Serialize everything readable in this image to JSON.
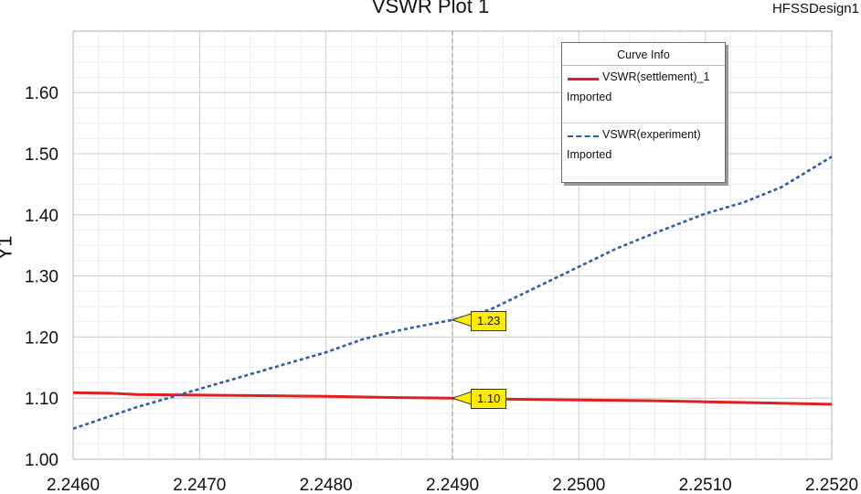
{
  "header": {
    "title": "VSWR Plot 1",
    "design_name": "HFSSDesign1"
  },
  "chart_data": {
    "type": "line",
    "title": "VSWR Plot 1",
    "xlabel": "",
    "ylabel": "Y1",
    "xlim": [
      2.246,
      2.252
    ],
    "ylim": [
      1.0,
      1.7
    ],
    "x_ticks": [
      "2.2460",
      "2.2470",
      "2.2480",
      "2.2490",
      "2.2500",
      "2.2510",
      "2.2520"
    ],
    "y_ticks": [
      "1.00",
      "1.10",
      "1.20",
      "1.30",
      "1.40",
      "1.50",
      "1.60"
    ],
    "grid": true,
    "cursor_x": 2.249,
    "series": [
      {
        "name": "VSWR(settlement)_1",
        "subtitle": "Imported",
        "color": "#e02020",
        "style": "solid",
        "x": [
          2.246,
          2.2463,
          2.2465,
          2.247,
          2.2475,
          2.248,
          2.2485,
          2.249,
          2.2495,
          2.25,
          2.2505,
          2.251,
          2.2515,
          2.252
        ],
        "y": [
          1.109,
          1.108,
          1.106,
          1.105,
          1.104,
          1.103,
          1.101,
          1.1,
          1.098,
          1.097,
          1.096,
          1.094,
          1.092,
          1.09
        ]
      },
      {
        "name": "VSWR(experiment)",
        "subtitle": "Imported",
        "color": "#2e5ea8",
        "style": "dashed",
        "x": [
          2.246,
          2.2465,
          2.247,
          2.2475,
          2.248,
          2.2483,
          2.2486,
          2.249,
          2.2493,
          2.2496,
          2.25,
          2.2503,
          2.2506,
          2.251,
          2.2513,
          2.2516,
          2.252
        ],
        "y": [
          1.05,
          1.085,
          1.115,
          1.145,
          1.175,
          1.197,
          1.212,
          1.228,
          1.245,
          1.275,
          1.315,
          1.345,
          1.37,
          1.402,
          1.42,
          1.445,
          1.495
        ]
      }
    ],
    "markers": [
      {
        "label": "1.23",
        "x": 2.249,
        "y": 1.228
      },
      {
        "label": "1.10",
        "x": 2.249,
        "y": 1.1
      }
    ]
  },
  "legend": {
    "title": "Curve Info",
    "entries": [
      {
        "name": "VSWR(settlement)_1",
        "subtitle": "Imported",
        "color": "#e02020"
      },
      {
        "name": "VSWR(experiment)",
        "subtitle": "Imported",
        "color": "#2e5ea8"
      }
    ]
  }
}
